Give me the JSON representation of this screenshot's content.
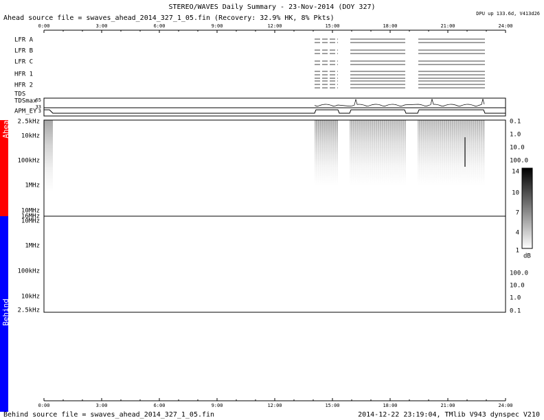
{
  "header": {
    "title": "STEREO/WAVES Daily Summary - 23-Nov-2014 (DOY 327)",
    "ahead_source": "Ahead source file = swaves_ahead_2014_327_1_05.fin (Recovery: 32.9% HK,   8% Pkts)",
    "status": "DPU up 133.6d, V413d26"
  },
  "time_axis": {
    "ticks": [
      "0:00",
      "3:00",
      "6:00",
      "9:00",
      "12:00",
      "15:00",
      "18:00",
      "21:00",
      "24:00"
    ]
  },
  "instrument_rows": [
    "LFR A",
    "LFR B",
    "LFR C",
    "HFR 1",
    "HFR 2",
    "TDS",
    "TDSmax",
    "APM_EY"
  ],
  "tdsmax_scale": [
    "65",
    "33",
    "3"
  ],
  "ahead": {
    "label": "Ahead",
    "freq_labels": [
      "2.5kHz",
      "10kHz",
      "100kHz",
      "1MHz",
      "10MHz",
      "16MHz"
    ],
    "right_labels": [
      "0.1",
      "1.0",
      "10.0",
      "100.0"
    ]
  },
  "colorbar": {
    "labels": [
      "14",
      "10",
      "7",
      "4",
      "1"
    ],
    "unit": "dB"
  },
  "behind": {
    "label": "Behind",
    "freq_labels": [
      "10MHz",
      "1MHz",
      "100kHz",
      "10kHz",
      "2.5kHz"
    ],
    "right_labels": [
      "100.0",
      "10.0",
      "1.0",
      "0.1"
    ]
  },
  "footer": {
    "behind_source": "Behind source file = swaves_ahead_2014_327_1_05.fin",
    "timestamp": "2014-12-22 23:19:04, TMlib V943 dynspec V210"
  }
}
